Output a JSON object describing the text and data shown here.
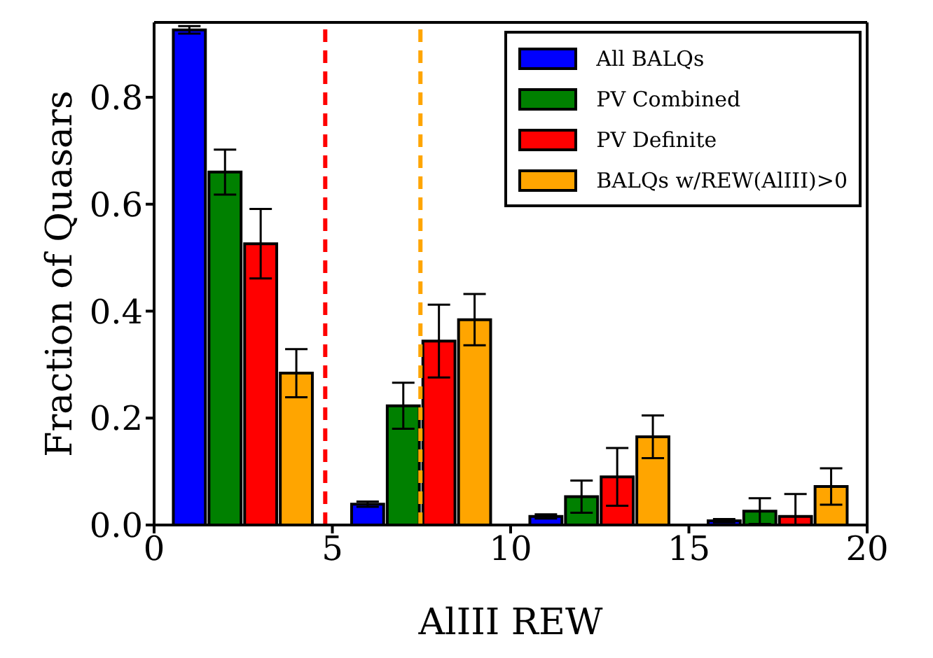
{
  "chart_data": {
    "type": "bar",
    "xlabel": "AlIII REW",
    "ylabel": "Fraction of Quasars",
    "series": [
      {
        "name": "All BALQs",
        "color": "#0000ff",
        "x": [
          1,
          6,
          11,
          16
        ],
        "values": [
          0.926,
          0.039,
          0.016,
          0.008
        ],
        "errors": [
          0.007,
          0.005,
          0.004,
          0.003
        ]
      },
      {
        "name": "PV Combined",
        "color": "#008000",
        "x": [
          2,
          7,
          12,
          17
        ],
        "values": [
          0.66,
          0.223,
          0.053,
          0.026
        ],
        "errors": [
          0.042,
          0.043,
          0.03,
          0.024
        ]
      },
      {
        "name": "PV Definite",
        "color": "#ff0000",
        "x": [
          3,
          8,
          13,
          18
        ],
        "values": [
          0.526,
          0.344,
          0.09,
          0.016
        ],
        "errors": [
          0.065,
          0.068,
          0.054,
          [
            0,
            0.058
          ]
        ]
      },
      {
        "name": "BALQs w/REW(AlIII)>0",
        "color": "#ffa500",
        "x": [
          4,
          9,
          14,
          19
        ],
        "values": [
          0.284,
          0.384,
          0.165,
          0.072
        ],
        "errors": [
          0.045,
          0.048,
          0.04,
          0.034
        ]
      }
    ],
    "xlim": [
      0,
      20
    ],
    "xticks": [
      0,
      5,
      10,
      15,
      20
    ],
    "ylim": [
      0,
      0.94
    ],
    "yticks": [
      {
        "value": 0,
        "label": "0.0"
      },
      {
        "value": 0.2,
        "label": "0.2"
      },
      {
        "value": 0.4,
        "label": "0.4"
      },
      {
        "value": 0.6,
        "label": "0.6"
      },
      {
        "value": 0.8,
        "label": "0.8"
      }
    ],
    "ref_lines": [
      {
        "axis": "x",
        "value": 4.8,
        "color": "#ff0000",
        "line_style": "dashed"
      },
      {
        "axis": "x",
        "value": 7.47,
        "color": "#ffa500",
        "line_style": "dashed"
      }
    ],
    "legend": "top right",
    "grid": false
  }
}
